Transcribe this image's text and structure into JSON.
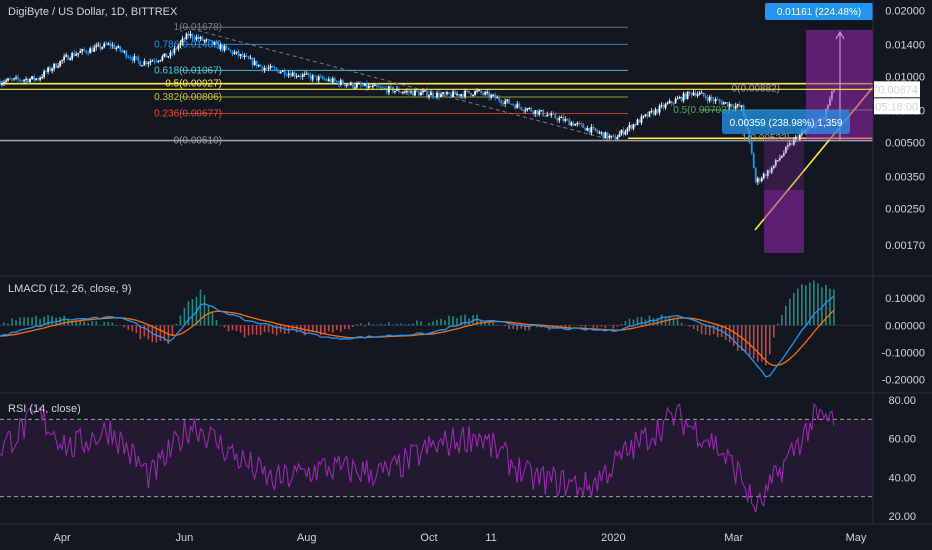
{
  "header": {
    "symbol": "DigiByte / US Dollar, 1D, BITTREX",
    "macd_label": "LMACD (12, 26, close, 9)",
    "rsi_label": "RSI (14, close)"
  },
  "colors": {
    "background": "#131722",
    "candle_up": "#ffffff",
    "candle_down": "#2196f3",
    "macd_line": "#2196f3",
    "signal_line": "#ff6d00",
    "rsi_line": "#9c27b0",
    "price_label": "#ffffff",
    "target_label": "#2196f3",
    "trend_yellow": "#ffeb3b",
    "highlight_purple": "#9c27b0"
  },
  "chart_data": [
    {
      "type": "candlestick",
      "scale": "log",
      "y_ticks": [
        "0.02000",
        "0.01400",
        "0.01000",
        "0.00700",
        "0.00500",
        "0.00350",
        "0.00250",
        "0.00170"
      ],
      "x_ticks": [
        "Apr",
        "Jun",
        "Aug",
        "Oct",
        "11",
        "2020",
        "Mar",
        "May"
      ],
      "last_price": "0.00874",
      "countdown": "05:18:00",
      "target_label": "0.01161 (224.48%)",
      "fib_retracement_upper": [
        {
          "label": "1(0.01678)",
          "value": 0.01678,
          "color": "#787b86"
        },
        {
          "label": "0.786(0.01402)",
          "value": 0.01402,
          "color": "#2196f3"
        },
        {
          "label": "0.618(0.01067)",
          "value": 0.01067,
          "color": "#4dd0e1"
        },
        {
          "label": "0.5(0.00927)",
          "value": 0.00927,
          "color": "#ffeb3b"
        },
        {
          "label": "0.382(0.00806)",
          "value": 0.00806,
          "color": "#c0ca33"
        },
        {
          "label": "0.236(0.00677)",
          "value": 0.00677,
          "color": "#f44336"
        },
        {
          "label": "0(0.00510)",
          "value": 0.0051,
          "color": "#9e9e9e"
        }
      ],
      "fib_retracement_lower": [
        {
          "label": "0(0.00882)",
          "value": 0.00882
        },
        {
          "label": "0.5(0.00703)",
          "value": 0.00703
        },
        {
          "label": "1(0.00523)",
          "value": 0.00523
        }
      ],
      "measure_box": "0.00359 (238.98%) 1,359",
      "price_path": [
        {
          "x": "2019-03-01",
          "y": 0.0095
        },
        {
          "x": "2019-03-20",
          "y": 0.0098
        },
        {
          "x": "2019-04-05",
          "y": 0.0125
        },
        {
          "x": "2019-04-25",
          "y": 0.014
        },
        {
          "x": "2019-05-10",
          "y": 0.0115
        },
        {
          "x": "2019-05-25",
          "y": 0.0125
        },
        {
          "x": "2019-06-03",
          "y": 0.0155
        },
        {
          "x": "2019-06-20",
          "y": 0.0135
        },
        {
          "x": "2019-07-10",
          "y": 0.011
        },
        {
          "x": "2019-08-01",
          "y": 0.01
        },
        {
          "x": "2019-08-25",
          "y": 0.0091
        },
        {
          "x": "2019-09-20",
          "y": 0.0085
        },
        {
          "x": "2019-10-10",
          "y": 0.0082
        },
        {
          "x": "2019-10-25",
          "y": 0.0085
        },
        {
          "x": "2019-11-15",
          "y": 0.0073
        },
        {
          "x": "2019-12-10",
          "y": 0.0062
        },
        {
          "x": "2020-01-01",
          "y": 0.0052
        },
        {
          "x": "2020-01-20",
          "y": 0.0068
        },
        {
          "x": "2020-02-10",
          "y": 0.0085
        },
        {
          "x": "2020-02-20",
          "y": 0.0078
        },
        {
          "x": "2020-03-05",
          "y": 0.0072
        },
        {
          "x": "2020-03-12",
          "y": 0.0033
        },
        {
          "x": "2020-03-20",
          "y": 0.0038
        },
        {
          "x": "2020-04-01",
          "y": 0.0052
        },
        {
          "x": "2020-04-15",
          "y": 0.0065
        },
        {
          "x": "2020-04-20",
          "y": 0.00874
        }
      ]
    },
    {
      "type": "line",
      "name": "LMACD",
      "y_ticks": [
        "0.10000",
        "0.00000",
        "-0.10000",
        "-0.20000"
      ],
      "ylim": [
        -0.22,
        0.13
      ],
      "macd_path": [
        {
          "x": "2019-03-01",
          "y": -0.04
        },
        {
          "x": "2019-04-01",
          "y": 0.02
        },
        {
          "x": "2019-05-01",
          "y": 0.03
        },
        {
          "x": "2019-05-25",
          "y": -0.06
        },
        {
          "x": "2019-06-10",
          "y": 0.08
        },
        {
          "x": "2019-07-01",
          "y": 0.02
        },
        {
          "x": "2019-07-20",
          "y": -0.01
        },
        {
          "x": "2019-08-15",
          "y": -0.05
        },
        {
          "x": "2019-10-01",
          "y": -0.03
        },
        {
          "x": "2019-10-25",
          "y": 0.02
        },
        {
          "x": "2019-12-01",
          "y": -0.01
        },
        {
          "x": "2020-01-01",
          "y": -0.02
        },
        {
          "x": "2020-02-01",
          "y": 0.04
        },
        {
          "x": "2020-02-25",
          "y": -0.02
        },
        {
          "x": "2020-03-10",
          "y": -0.12
        },
        {
          "x": "2020-03-18",
          "y": -0.2
        },
        {
          "x": "2020-04-01",
          "y": -0.05
        },
        {
          "x": "2020-04-10",
          "y": 0.04
        },
        {
          "x": "2020-04-20",
          "y": 0.11
        }
      ]
    },
    {
      "type": "line",
      "name": "RSI",
      "y_ticks": [
        "80.00",
        "60.00",
        "40.00",
        "20.00"
      ],
      "ylim": [
        20,
        80
      ],
      "bands": [
        70,
        30
      ],
      "rsi_path": [
        {
          "x": "2019-03-01",
          "y": 55
        },
        {
          "x": "2019-03-20",
          "y": 72
        },
        {
          "x": "2019-04-05",
          "y": 55
        },
        {
          "x": "2019-04-25",
          "y": 65
        },
        {
          "x": "2019-05-15",
          "y": 40
        },
        {
          "x": "2019-06-05",
          "y": 68
        },
        {
          "x": "2019-06-25",
          "y": 52
        },
        {
          "x": "2019-07-15",
          "y": 38
        },
        {
          "x": "2019-08-10",
          "y": 45
        },
        {
          "x": "2019-09-10",
          "y": 42
        },
        {
          "x": "2019-10-01",
          "y": 55
        },
        {
          "x": "2019-10-25",
          "y": 62
        },
        {
          "x": "2019-11-20",
          "y": 40
        },
        {
          "x": "2019-12-20",
          "y": 35
        },
        {
          "x": "2020-01-10",
          "y": 55
        },
        {
          "x": "2020-02-01",
          "y": 72
        },
        {
          "x": "2020-02-20",
          "y": 58
        },
        {
          "x": "2020-03-05",
          "y": 40
        },
        {
          "x": "2020-03-12",
          "y": 22
        },
        {
          "x": "2020-03-25",
          "y": 45
        },
        {
          "x": "2020-04-10",
          "y": 70
        },
        {
          "x": "2020-04-20",
          "y": 70
        }
      ]
    }
  ]
}
